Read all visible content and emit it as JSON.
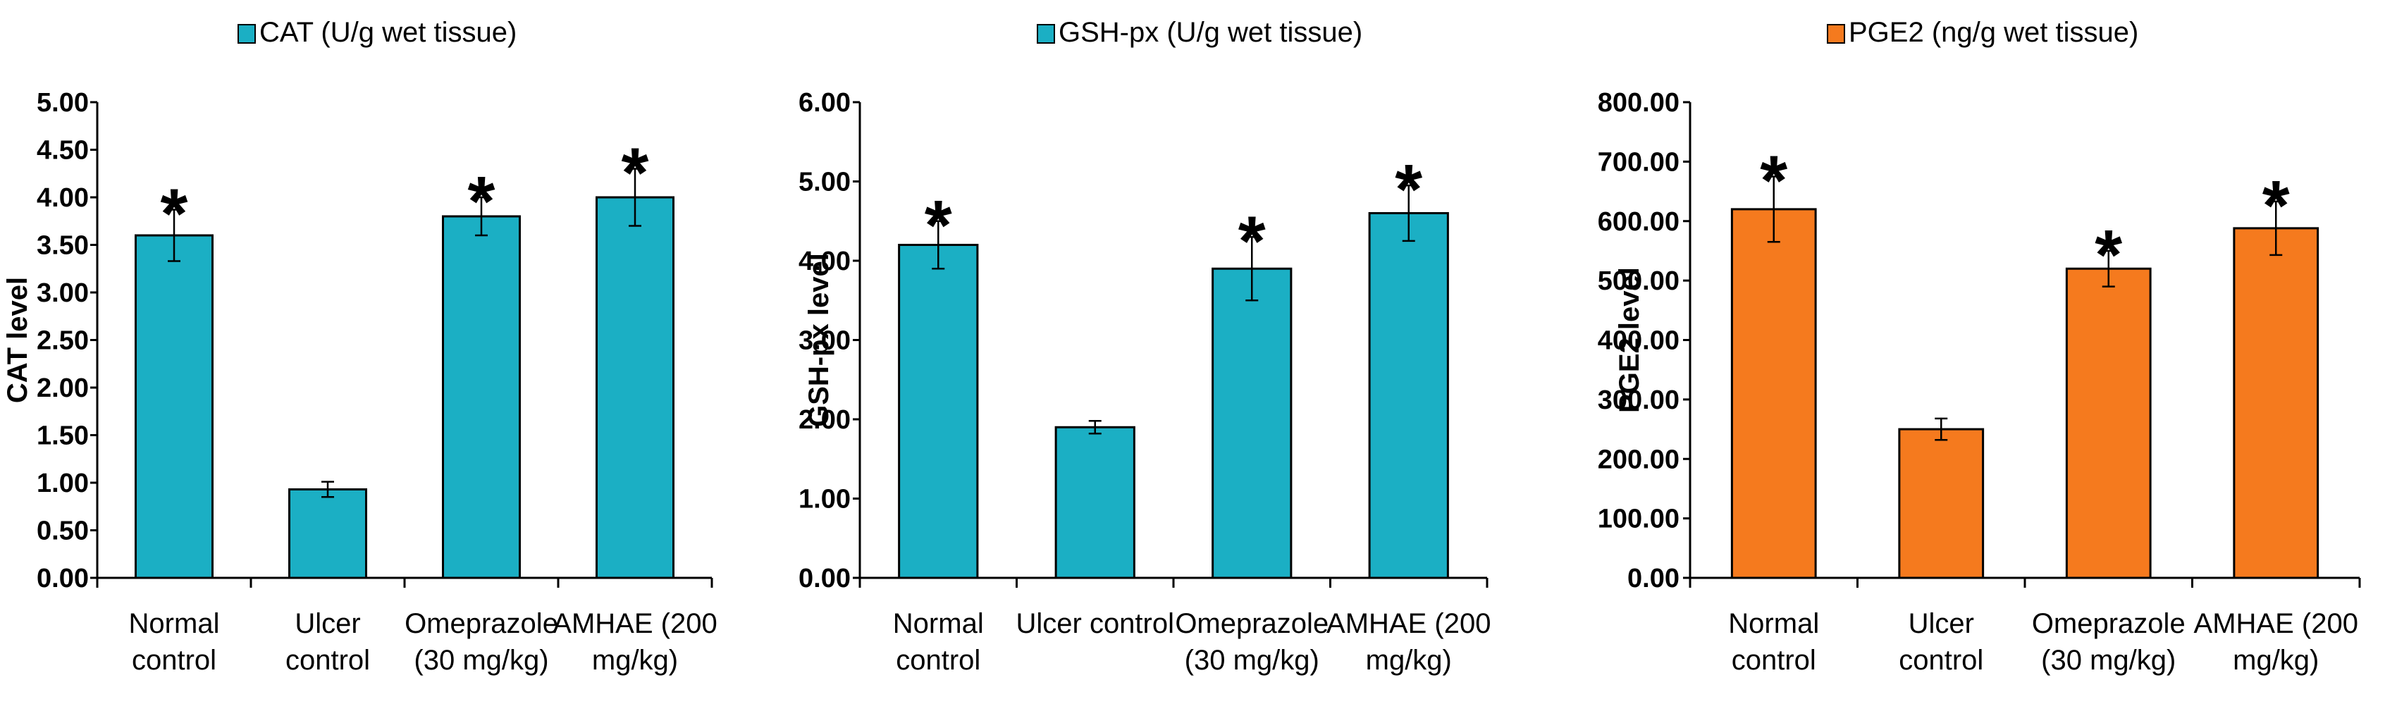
{
  "chart_data": [
    {
      "type": "bar",
      "title": "",
      "legend": "CAT (U/g wet tissue)",
      "ylabel": "CAT level",
      "xlabel": "",
      "color": "#1BAFC4",
      "ylim": [
        0,
        5
      ],
      "yticks": [
        "0.00",
        "0.50",
        "1.00",
        "1.50",
        "2.00",
        "2.50",
        "3.00",
        "3.50",
        "4.00",
        "4.50",
        "5.00"
      ],
      "categories": [
        [
          "Normal",
          "control"
        ],
        [
          "Ulcer",
          "control"
        ],
        [
          "Omeprazole",
          "(30 mg/kg)"
        ],
        [
          "AMHAE (200",
          "mg/kg)"
        ]
      ],
      "values": [
        3.6,
        0.93,
        3.8,
        4.0
      ],
      "errors": [
        0.27,
        0.08,
        0.2,
        0.3
      ],
      "annotations": [
        "*",
        "",
        "*",
        "*"
      ]
    },
    {
      "type": "bar",
      "title": "",
      "legend": "GSH-px (U/g wet tissue)",
      "ylabel": "GSH-px level",
      "xlabel": "",
      "color": "#1BAFC4",
      "ylim": [
        0,
        6
      ],
      "yticks": [
        "0.00",
        "1.00",
        "2.00",
        "3.00",
        "4.00",
        "5.00",
        "6.00"
      ],
      "categories": [
        [
          "Normal",
          "control"
        ],
        [
          "Ulcer control"
        ],
        [
          "Omeprazole",
          "(30 mg/kg)"
        ],
        [
          "AMHAE (200",
          "mg/kg)"
        ]
      ],
      "values": [
        4.2,
        1.9,
        3.9,
        4.6
      ],
      "errors": [
        0.3,
        0.08,
        0.4,
        0.35
      ],
      "annotations": [
        "*",
        "",
        "*",
        "*"
      ]
    },
    {
      "type": "bar",
      "title": "",
      "legend": "PGE2 (ng/g wet tissue)",
      "ylabel": "PGE2 level",
      "xlabel": "",
      "color": "#F57A1E",
      "ylim": [
        0,
        800
      ],
      "yticks": [
        "0.00",
        "100.00",
        "200.00",
        "300.00",
        "400.00",
        "500.00",
        "600.00",
        "700.00",
        "800.00"
      ],
      "categories": [
        [
          "Normal",
          "control"
        ],
        [
          "Ulcer",
          "control"
        ],
        [
          "Omeprazole",
          "(30 mg/kg)"
        ],
        [
          "AMHAE (200",
          "mg/kg)"
        ]
      ],
      "values": [
        620,
        250,
        520,
        588
      ],
      "errors": [
        55,
        18,
        30,
        45
      ],
      "annotations": [
        "*",
        "",
        "*",
        "*"
      ]
    }
  ]
}
